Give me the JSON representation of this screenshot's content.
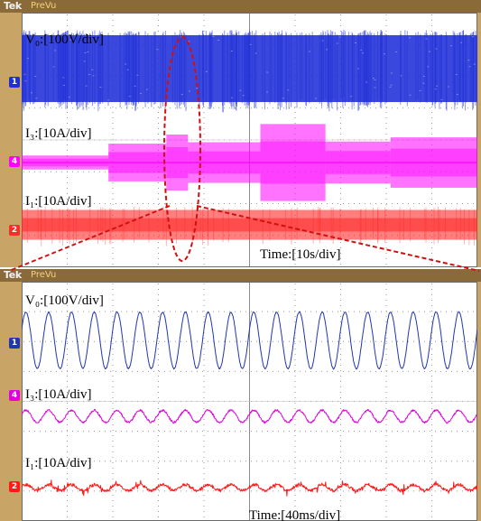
{
  "scope": {
    "brand": "Tek",
    "mode": "PreVu"
  },
  "chart_data": [
    {
      "type": "line",
      "title": "",
      "time_label": "Time:[10s/div]",
      "grid": true,
      "series": [
        {
          "name": "V₀:[100V/div]",
          "channel": "1",
          "color": "#1f2fd8",
          "kind": "band",
          "amplitude_div": 0.75,
          "level_div": 0
        },
        {
          "name": "I₃:[10A/div]",
          "channel": "4",
          "color": "#ff00ff",
          "kind": "steps",
          "steps": [
            {
              "t": [
                0,
                1.2
              ],
              "amp": 0.1
            },
            {
              "t": [
                1.2,
                2.0
              ],
              "amp": 0.27
            },
            {
              "t": [
                2.0,
                2.3
              ],
              "amp": 0.4
            },
            {
              "t": [
                2.3,
                3.3
              ],
              "amp": 0.29
            },
            {
              "t": [
                3.3,
                4.2
              ],
              "amp": 0.55
            },
            {
              "t": [
                4.2,
                5.1
              ],
              "amp": 0.3
            },
            {
              "t": [
                5.1,
                6.3
              ],
              "amp": 0.36
            }
          ]
        },
        {
          "name": "I₁:[10A/div]",
          "channel": "2",
          "color": "#ff2a2a",
          "kind": "band",
          "amplitude_div": 0.18
        }
      ]
    },
    {
      "type": "line",
      "title": "",
      "time_label": "Time:[40ms/div]",
      "grid": true,
      "series": [
        {
          "name": "V₀:[100V/div]",
          "channel": "1",
          "color": "#2035b0",
          "kind": "sine",
          "cycles": 20,
          "amplitude_div": 0.7
        },
        {
          "name": "I₃:[10A/div]",
          "channel": "4",
          "color": "#e000e0",
          "kind": "sine",
          "cycles": 20,
          "amplitude_div": 0.2
        },
        {
          "name": "I₁:[10A/div]",
          "channel": "2",
          "color": "#ff1a1a",
          "kind": "sine",
          "cycles": 20,
          "amplitude_div": 0.1
        }
      ]
    }
  ]
}
